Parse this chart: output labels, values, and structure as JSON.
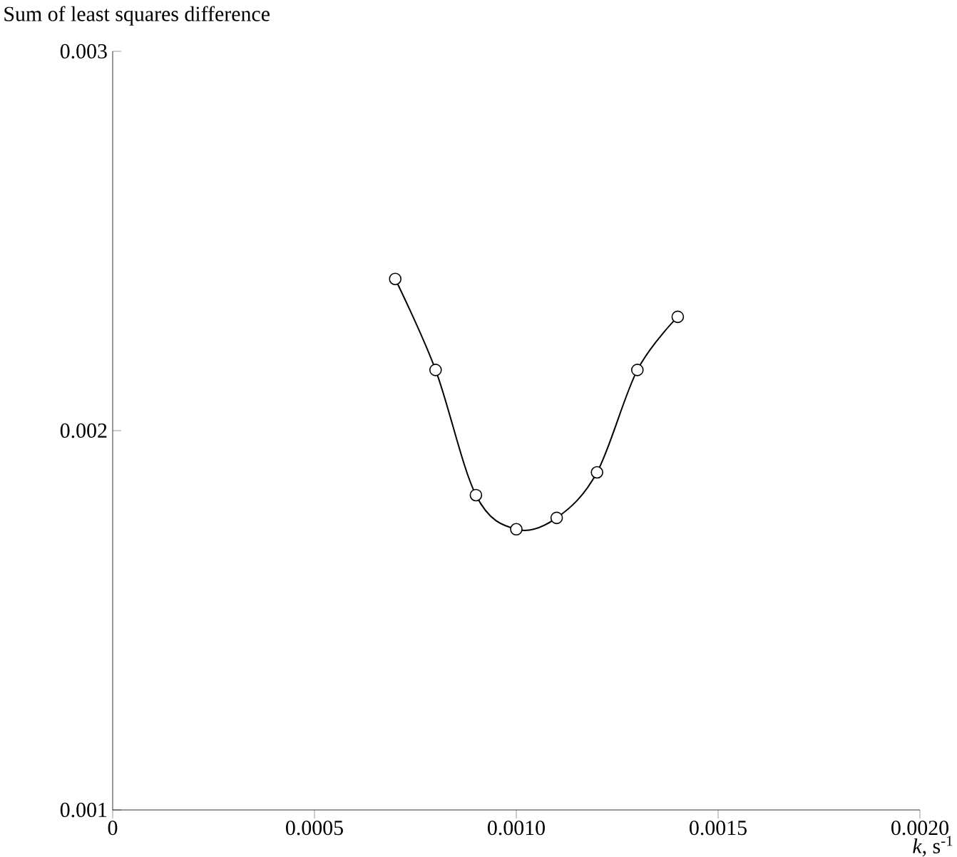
{
  "chart_data": {
    "type": "line",
    "ylabel": "Sum of least squares difference",
    "xlabel": "*k*, s$^{-1}$",
    "x": [
      0.0007,
      0.0008,
      0.0009,
      0.001,
      0.0011,
      0.0012,
      0.0013,
      0.0014
    ],
    "series": [
      {
        "color": "#000000",
        "values": [
          0.0024,
          0.00216,
          0.00183,
          0.00174,
          0.00177,
          0.00189,
          0.00216,
          0.0023
        ]
      }
    ],
    "marker": "circle",
    "line_style": "solid",
    "grid": false,
    "xlim": [
      0,
      0.002
    ],
    "ylim": [
      0.001,
      0.003
    ],
    "xticks": [
      {
        "value": 0,
        "label": "0"
      },
      {
        "value": 0.0005,
        "label": "0.0005"
      },
      {
        "value": 0.001,
        "label": "0.0010"
      },
      {
        "value": 0.0015,
        "label": "0.0015"
      },
      {
        "value": 0.002,
        "label": "0.0020"
      }
    ],
    "yticks": [
      {
        "value": 0.001,
        "label": "0.001"
      },
      {
        "value": 0.002,
        "label": "0.002"
      },
      {
        "value": 0.003,
        "label": "0.003"
      }
    ]
  }
}
